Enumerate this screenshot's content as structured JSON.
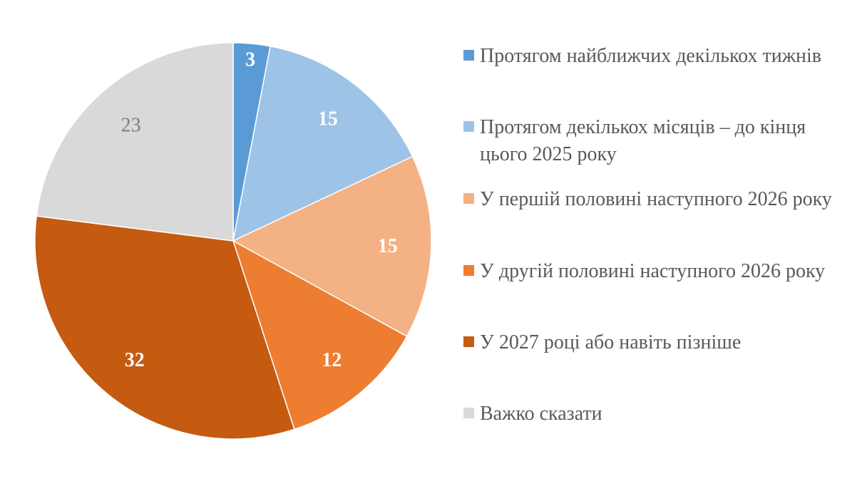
{
  "chart_data": {
    "type": "pie",
    "title": "",
    "categories": [
      "Протягом найближчих декількох тижнів",
      "Протягом декількох місяців – до кінця цього 2025 року",
      "У першій половині наступного 2026 року",
      "У другій половині наступного 2026 року",
      "У 2027 році або навіть пізніше",
      "Важко сказати"
    ],
    "values": [
      3,
      15,
      15,
      12,
      32,
      23
    ],
    "colors": [
      "#5B9BD5",
      "#9DC3E6",
      "#F4B183",
      "#ED7D31",
      "#C55A11",
      "#D9D9D9"
    ],
    "label_colors": [
      "#FFFFFF",
      "#FFFFFF",
      "#FFFFFF",
      "#FFFFFF",
      "#FFFFFF",
      "#7F7F7F"
    ],
    "label_bold": [
      true,
      true,
      true,
      true,
      true,
      false
    ],
    "start_angle_deg": 0,
    "direction": "clockwise",
    "legend_position": "right"
  },
  "legend": {
    "items": [
      {
        "label": "Протягом найближчих декількох тижнів",
        "color": "#5B9BD5"
      },
      {
        "label": "Протягом декількох місяців – до кінця цього 2025 року",
        "color": "#9DC3E6"
      },
      {
        "label": "У першій половині наступного 2026 року",
        "color": "#F4B183"
      },
      {
        "label": "У другій половині наступного 2026 року",
        "color": "#ED7D31"
      },
      {
        "label": "У 2027 році або навіть пізніше",
        "color": "#C55A11"
      },
      {
        "label": "Важко сказати",
        "color": "#D9D9D9"
      }
    ]
  }
}
